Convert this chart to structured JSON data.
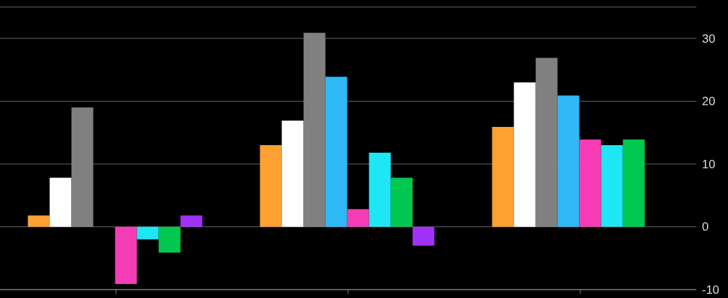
{
  "chart_data": {
    "type": "bar",
    "categories": [
      null,
      null,
      null
    ],
    "series": [
      {
        "color": "#ffa032",
        "values": [
          1.8,
          13,
          15.9
        ]
      },
      {
        "color": "#ffffff",
        "values": [
          7.8,
          16.9,
          23
        ]
      },
      {
        "color": "#808080",
        "values": [
          19,
          30.9,
          26.9
        ]
      },
      {
        "color": "#2eb8f5",
        "values": [
          null,
          23.9,
          20.9
        ]
      },
      {
        "color": "#f53cb4",
        "values": [
          -9.1,
          2.8,
          13.9
        ]
      },
      {
        "color": "#1ee6f5",
        "values": [
          -2,
          11.8,
          13
        ]
      },
      {
        "color": "#00c850",
        "values": [
          -4.1,
          7.8,
          13.9
        ]
      },
      {
        "color": "#a032f5",
        "values": [
          1.8,
          -3,
          null
        ]
      }
    ],
    "ylim": [
      -10,
      35
    ],
    "yticks": [
      -10,
      0,
      10,
      20,
      30
    ],
    "grid": "y",
    "tick_labels": "y",
    "legend": false
  }
}
